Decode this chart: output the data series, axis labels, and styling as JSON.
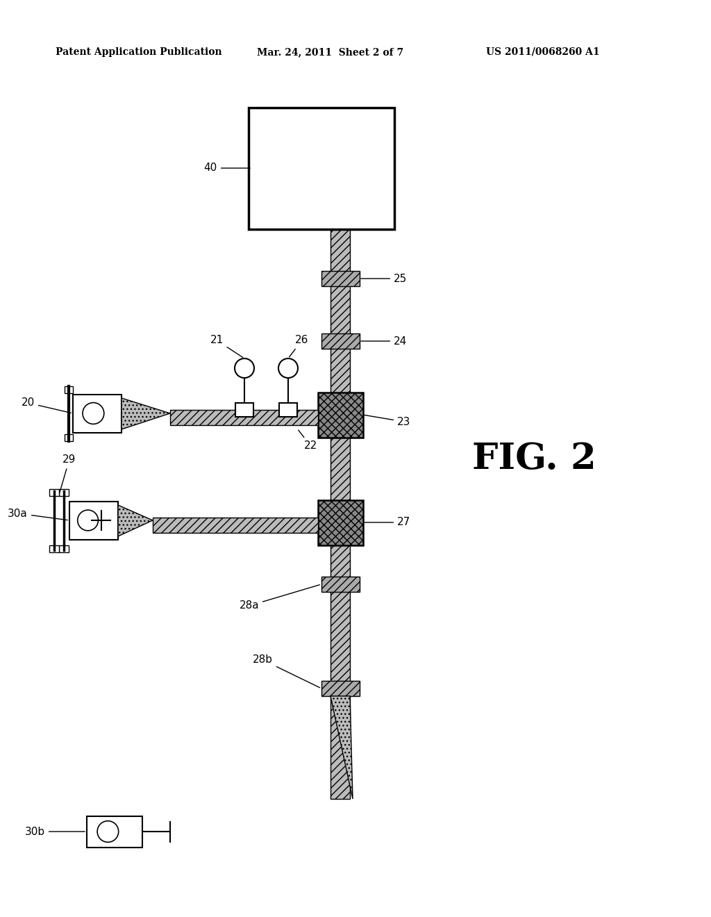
{
  "title_left": "Patent Application Publication",
  "title_mid": "Mar. 24, 2011  Sheet 2 of 7",
  "title_right": "US 2011/0068260 A1",
  "fig_label": "FIG. 2",
  "background_color": "#ffffff",
  "line_color": "#000000",
  "beam_color": "#bbbbbb",
  "splitter_color": "#888888",
  "collar_color": "#aaaaaa"
}
